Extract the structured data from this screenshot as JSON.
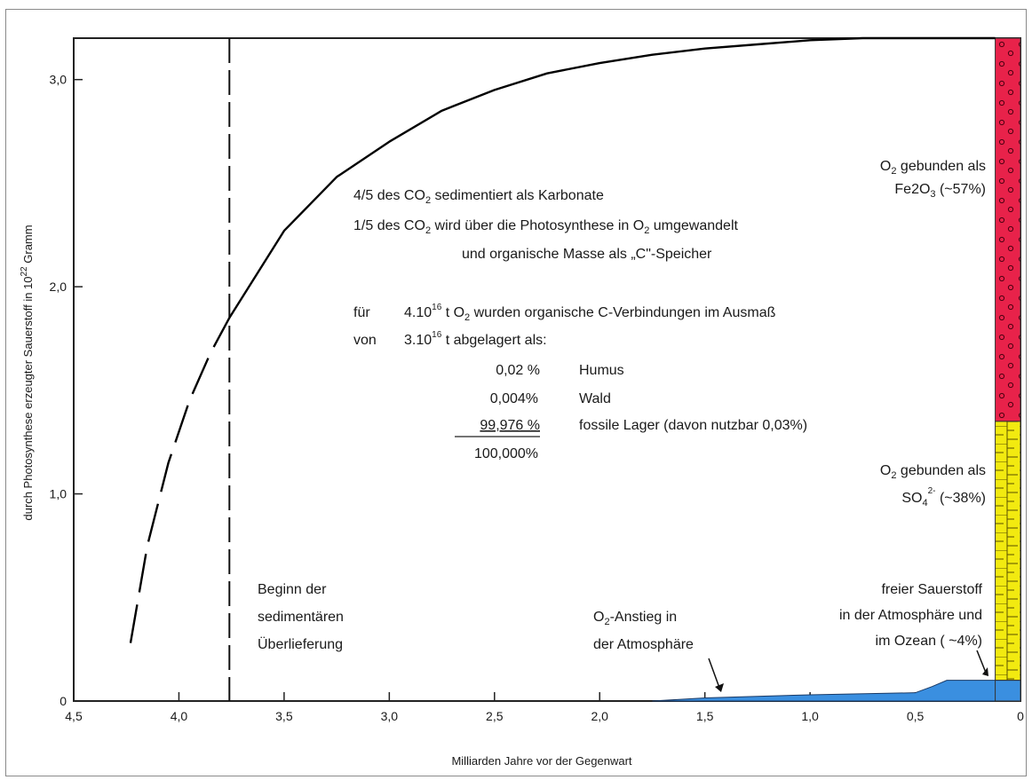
{
  "chart_data": {
    "type": "line",
    "xlabel": "Milliarden Jahre vor der Gegenwart",
    "ylabel": "durch Photosynthese erzeugter Sauerstoff in 10",
    "ylabel_exp": "22",
    "ylabel_unit": "Gramm",
    "xlim": [
      4.5,
      0
    ],
    "ylim": [
      0,
      3.2
    ],
    "x_ticks": [
      "4,5",
      "4,0",
      "3,5",
      "3,0",
      "2,5",
      "2,0",
      "1,5",
      "1,0",
      "0,5",
      "0"
    ],
    "y_ticks": [
      "0",
      "1,0",
      "2,0",
      "3,0"
    ],
    "series": [
      {
        "style": "dashed",
        "color": "#000000",
        "x": [
          4.23,
          4.15,
          4.05,
          3.95,
          3.85,
          3.76
        ],
        "y": [
          0.28,
          0.75,
          1.15,
          1.45,
          1.68,
          1.85
        ]
      },
      {
        "style": "solid",
        "color": "#000000",
        "x": [
          3.76,
          3.5,
          3.25,
          3.0,
          2.75,
          2.5,
          2.25,
          2.0,
          1.75,
          1.5,
          1.25,
          1.0,
          0.75,
          0.5,
          0.25,
          0.12
        ],
        "y": [
          1.85,
          2.27,
          2.53,
          2.7,
          2.85,
          2.95,
          3.03,
          3.08,
          3.12,
          3.15,
          3.17,
          3.19,
          3.2,
          3.2,
          3.2,
          3.2
        ]
      }
    ],
    "atmosphere_area": {
      "color": "#3a8fe0",
      "x": [
        1.75,
        1.5,
        1.0,
        0.5,
        0.42,
        0.35,
        0.0
      ],
      "y": [
        0.0,
        0.015,
        0.03,
        0.04,
        0.07,
        0.1,
        0.1
      ]
    },
    "sedimentation_marker_x": 3.76,
    "stacked_bar": {
      "x_from": 0.12,
      "x_to": 0.0,
      "segments": [
        {
          "from": 1.35,
          "to": 3.2,
          "color": "#e8224a",
          "pattern": "dots"
        },
        {
          "from": 0.1,
          "to": 1.35,
          "color": "#f2ea10",
          "pattern": "ruler"
        },
        {
          "from": 0.0,
          "to": 0.1,
          "color": "#3a8fe0",
          "pattern": "none"
        }
      ]
    },
    "annotations": {
      "fe2o3_line1": "O",
      "fe2o3_line1_sub": "2",
      "fe2o3_line1_rest": " gebunden als",
      "fe2o3_line2": "Fe2O",
      "fe2o3_line2_sub": "3",
      "fe2o3_line2_rest": " (~57%)",
      "so4_line1": "O",
      "so4_line1_sub": "2",
      "so4_line1_rest": " gebunden als",
      "so4_line2": "SO",
      "so4_line2_sub": "4",
      "so4_line2_sup": "2-",
      "so4_line2_rest": "  (~38%)",
      "free_line1": "freier Sauerstoff",
      "free_line2": "in der Atmosphäre und",
      "free_line3": "im Ozean ( ~4%)",
      "rise_line1_a": "O",
      "rise_line1_sub": "2",
      "rise_line1_b": "-Anstieg in",
      "rise_line2": "der Atmosphäre",
      "sed_line1": "Beginn der",
      "sed_line2": "sedimentären",
      "sed_line3": "Überlieferung",
      "co2_a1": "4/5  des CO",
      "co2_a1_sub": "2",
      "co2_a1_rest": " sedimentiert als Karbonate",
      "co2_a2": "1/5  des CO",
      "co2_a2_sub": "2",
      "co2_a2_rest": " wird über die Photosynthese in O",
      "co2_a2_sub2": "2",
      "co2_a2_rest2": " umgewandelt",
      "co2_a3": "und organische Masse als „C\"-Speicher",
      "fuer_label": "für",
      "fuer_text_a": "4.10",
      "fuer_text_sup": "16",
      "fuer_text_b": " t O",
      "fuer_text_sub": "2",
      "fuer_text_c": " wurden organische C-Verbindungen im Ausmaß",
      "von_label": "von",
      "von_text_a": "3.10",
      "von_text_sup": "16",
      "von_text_b": " t abgelagert als:",
      "rows": [
        {
          "pct": "0,02  %",
          "name": "Humus"
        },
        {
          "pct": "0,004%",
          "name": "Wald"
        },
        {
          "pct": "99,976 %",
          "name": "fossile Lager (davon nutzbar 0,03%)"
        }
      ],
      "total": "100,000%"
    }
  }
}
